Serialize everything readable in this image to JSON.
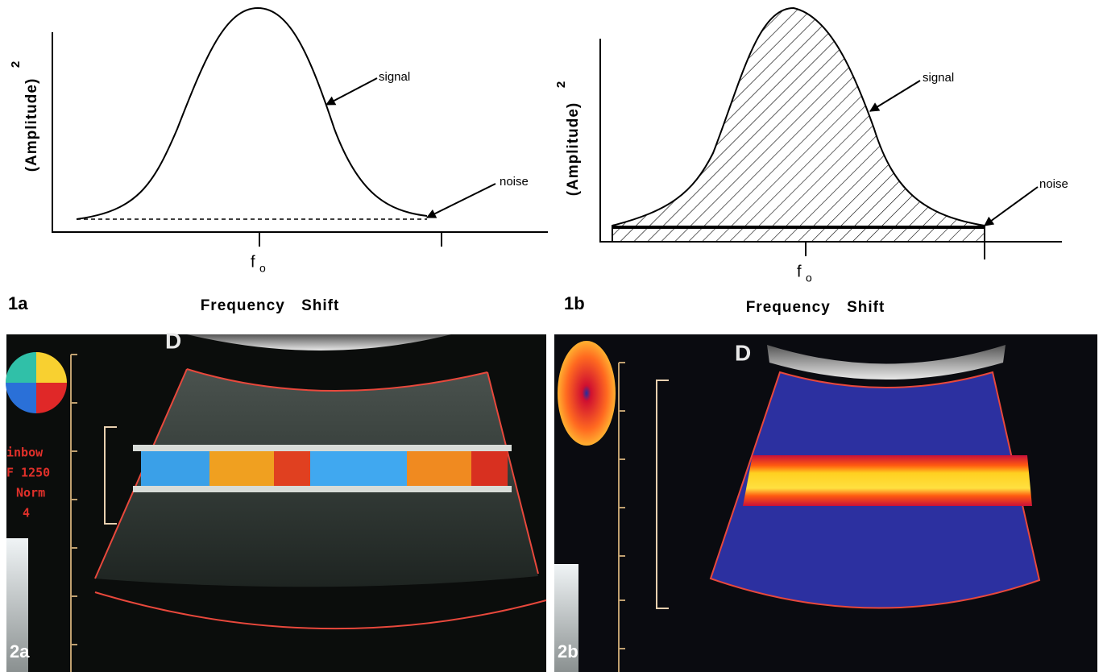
{
  "figure_1a": {
    "label": "1a",
    "y_label": "(Amplitude)",
    "y_label_exponent": "2",
    "x_label": "Frequency Shift",
    "x_tick": "f",
    "x_tick_subscript": "o",
    "annotations": [
      "signal",
      "noise"
    ]
  },
  "figure_1b": {
    "label": "1b",
    "y_label": "(Amplitude)",
    "y_label_exponent": "2",
    "x_label": "Frequency Shift",
    "x_tick": "f",
    "x_tick_subscript": "o",
    "annotations": [
      "signal",
      "noise"
    ]
  },
  "figure_2a": {
    "label": "2a",
    "marker": "D",
    "settings": [
      "inbow",
      "F 1250",
      "Norm",
      "4"
    ]
  },
  "figure_2b": {
    "label": "2b",
    "marker": "D"
  }
}
